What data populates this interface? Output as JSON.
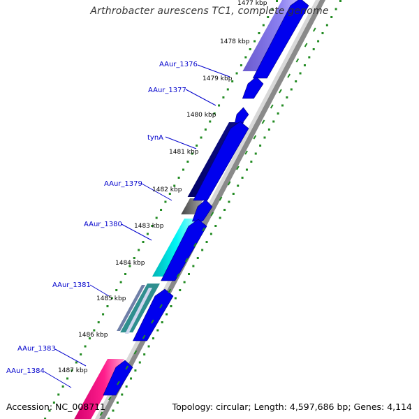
{
  "title": "Arthrobacter aurescens TC1, complete genome",
  "footer": {
    "accession": "Accession: NC_008711",
    "summary": "Topology: circular; Length: 4,597,686 bp; Genes: 4,114"
  },
  "colors": {
    "cds_forward": "#0000ee",
    "gene_label": "#0000cc",
    "gc_skew_dots": "#228b22",
    "backbone": "#777777"
  },
  "kbp_ticks": [
    "1477 kbp",
    "1478 kbp",
    "1479 kbp",
    "1480 kbp",
    "1481 kbp",
    "1482 kbp",
    "1483 kbp",
    "1484 kbp",
    "1485 kbp",
    "1486 kbp",
    "1487 kbp"
  ],
  "gene_labels": [
    "AAur_1376",
    "AAur_1377",
    "tynA",
    "AAur_1379",
    "AAur_1380",
    "AAur_1381",
    "AAur_1383",
    "AAur_1384"
  ],
  "feature_colors": {
    "AAur_1376": "#7b68ee",
    "tynA": "#000080",
    "AAur_1379": "#666666",
    "AAur_1380": "#00e5ee",
    "AAur_1381": "#2f8f8f",
    "AAur_1384": "#ff1493"
  }
}
